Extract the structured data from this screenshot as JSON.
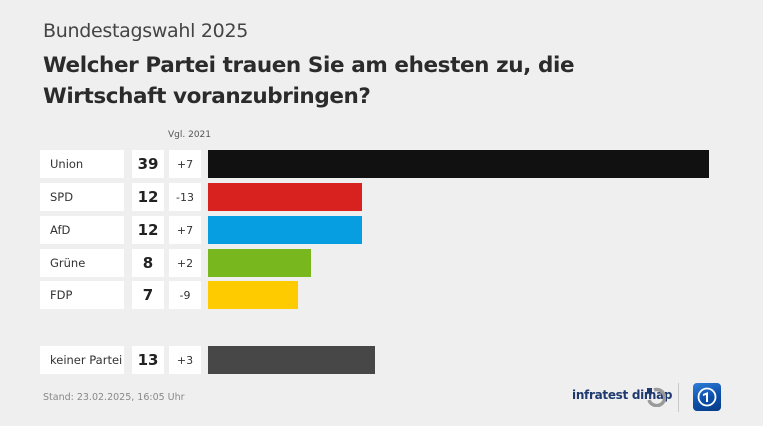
{
  "header": {
    "subtitle": "Bundestagswahl 2025",
    "title": "Welcher Partei trauen Sie am ehesten zu, die Wirtschaft voranzubringen?"
  },
  "compare_label": "Vgl. 2021",
  "chart_data": {
    "type": "bar",
    "orientation": "horizontal",
    "title": "Welcher Partei trauen Sie am ehesten zu, die Wirtschaft voranzubringen?",
    "subtitle": "Bundestagswahl 2025",
    "unit": "%",
    "compare_label": "Vgl. 2021",
    "max_value": 39,
    "categories": [
      "Union",
      "SPD",
      "AfD",
      "Grüne",
      "FDP",
      "keiner Partei"
    ],
    "values": [
      39,
      12,
      12,
      8,
      7,
      13
    ],
    "changes": [
      "+7",
      "-13",
      "+7",
      "+2",
      "-9",
      "+3"
    ],
    "colors": [
      "#111111",
      "#d7221f",
      "#069ee0",
      "#78b81e",
      "#fdcb00",
      "#474747"
    ],
    "rows": [
      {
        "label": "Union",
        "value": "39",
        "change": "+7",
        "color": "#111111"
      },
      {
        "label": "SPD",
        "value": "12",
        "change": "-13",
        "color": "#d7221f"
      },
      {
        "label": "AfD",
        "value": "12",
        "change": "+7",
        "color": "#069ee0"
      },
      {
        "label": "Grüne",
        "value": "8",
        "change": "+2",
        "color": "#78b81e"
      },
      {
        "label": "FDP",
        "value": "7",
        "change": "-9",
        "color": "#fdcb00"
      },
      {
        "label": "keiner Partei",
        "value": "13",
        "change": "+3",
        "color": "#474747"
      }
    ]
  },
  "footer": {
    "stand": "Stand:  23.02.2025, 16:05 Uhr",
    "brand": "infratest dimap",
    "logo": "tagesschau-logo"
  }
}
